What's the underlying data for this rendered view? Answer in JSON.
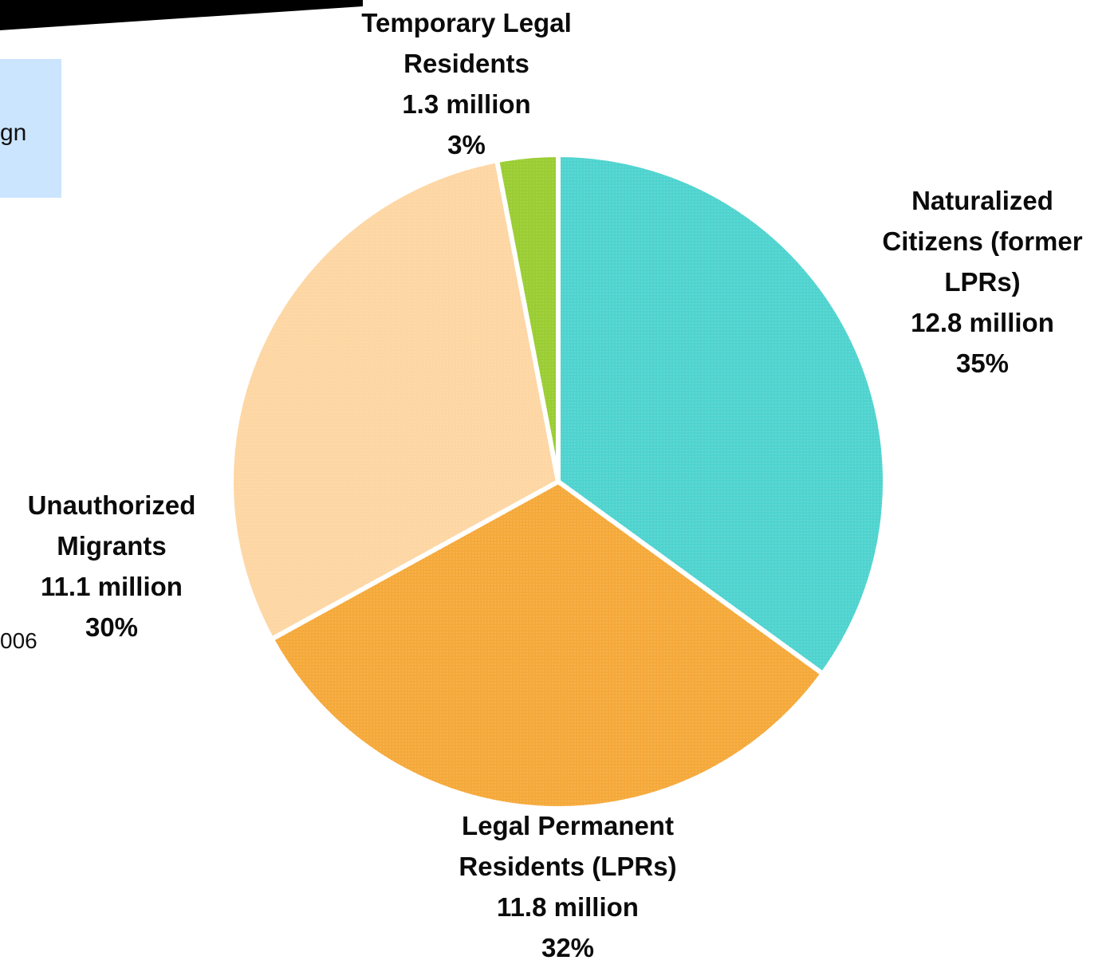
{
  "callout": {
    "text_fragment": "gn"
  },
  "footnote": {
    "text_fragment": "006"
  },
  "chart_data": {
    "type": "pie",
    "slices": [
      {
        "label_lines": [
          "Naturalized",
          "Citizens (former",
          "LPRs)"
        ],
        "value": "12.8 million",
        "percent": "35%",
        "share": 35,
        "color": "#4fd3cf"
      },
      {
        "label_lines": [
          "Legal Permanent",
          "Residents (LPRs)"
        ],
        "value": "11.8 million",
        "percent": "32%",
        "share": 32,
        "color": "#f5a93a"
      },
      {
        "label_lines": [
          "Unauthorized",
          "Migrants"
        ],
        "value": "11.1 million",
        "percent": "30%",
        "share": 30,
        "color": "#fdd6a3"
      },
      {
        "label_lines": [
          "Temporary Legal",
          "Residents"
        ],
        "value": "1.3 million",
        "percent": "3%",
        "share": 3,
        "color": "#9acd32"
      }
    ]
  }
}
